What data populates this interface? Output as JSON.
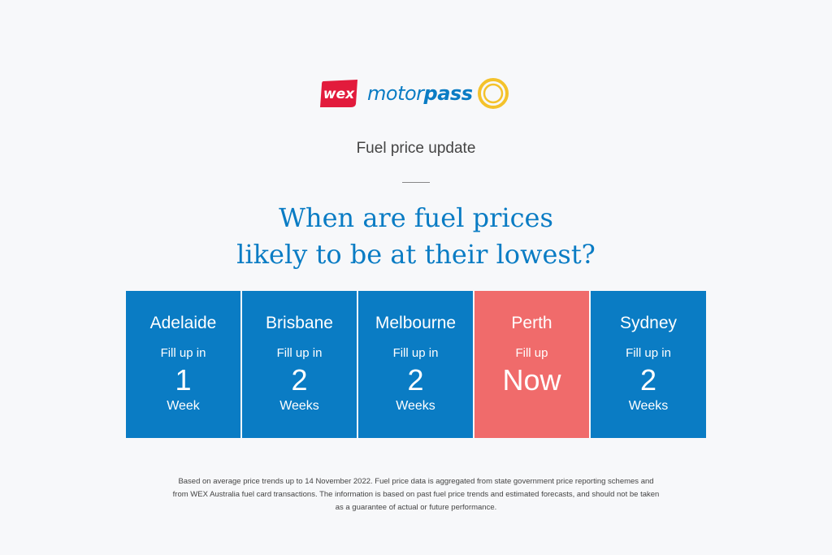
{
  "brand": {
    "wex_label": "wex",
    "motor_label": "motor",
    "pass_label": "pass",
    "wex_color": "#e21b3c",
    "brand_blue": "#0a7cc4",
    "ring_color": "#f4c22b"
  },
  "subtitle": "Fuel price update",
  "headline": {
    "line1": "When are fuel prices",
    "line2": "likely to be at their lowest?"
  },
  "cards": [
    {
      "city": "Adelaide",
      "lead": "Fill up in",
      "num": "1",
      "unit": "Week"
    },
    {
      "city": "Brisbane",
      "lead": "Fill up in",
      "num": "2",
      "unit": "Weeks"
    },
    {
      "city": "Melbourne",
      "lead": "Fill up in",
      "num": "2",
      "unit": "Weeks"
    },
    {
      "city": "Perth",
      "lead": "Fill up",
      "num": "Now",
      "unit": ""
    },
    {
      "city": "Sydney",
      "lead": "Fill up in",
      "num": "2",
      "unit": "Weeks"
    }
  ],
  "colors": {
    "card_blue": "#0a7cc4",
    "card_highlight": "#f06b6b"
  },
  "disclaimer": "Based on average price trends up to 14 November 2022. Fuel price data is aggregated from state government price reporting schemes and from WEX Australia fuel card transactions. The information is based on past fuel price trends and estimated forecasts, and should not be taken as a guarantee of actual or future performance."
}
